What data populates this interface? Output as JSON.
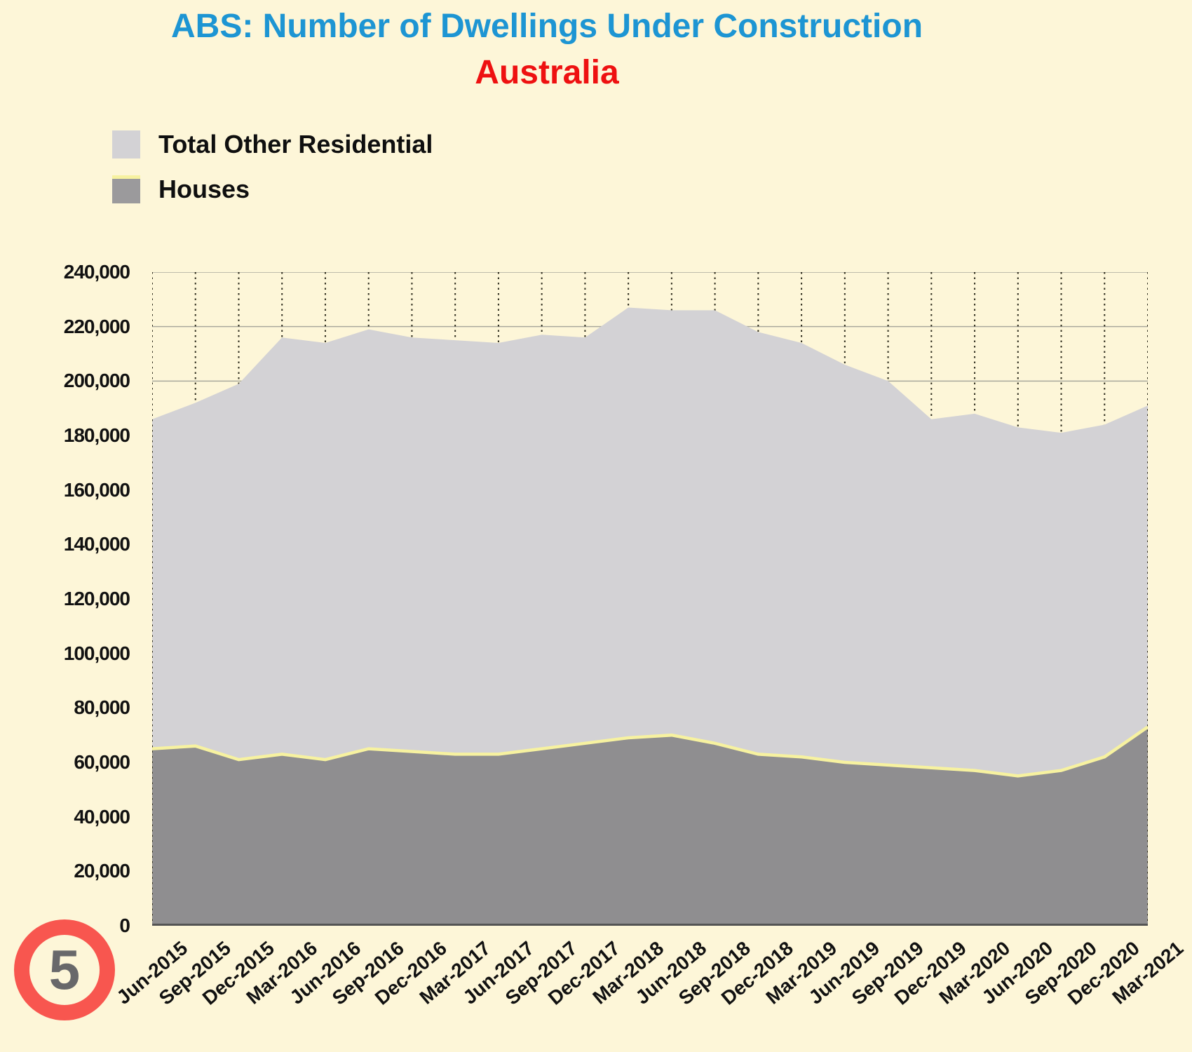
{
  "title": {
    "line1": "ABS: Number of Dwellings Under Construction",
    "line2": "Australia"
  },
  "legend": {
    "items": [
      {
        "label": "Total Other Residential",
        "swatch_color": "#d3d2d5"
      },
      {
        "label": "Houses",
        "swatch_color": "#9b9a9c",
        "swatch_top_line_color": "#f7f2a0"
      }
    ]
  },
  "badge": {
    "number": "5"
  },
  "colors": {
    "background": "#fdf6d8",
    "title_blue": "#1d95d3",
    "subtitle_red": "#ee1111",
    "area_houses": "#8f8e90",
    "area_other_residential": "#d3d2d5",
    "houses_top_line": "#f7f2a0",
    "grid_horizontal": "#a9a89c",
    "grid_vertical_dotted": "#2f2d1e",
    "axis_bottom_line": "#545454",
    "axis_text": "#111111",
    "badge_ring": "#f8564f",
    "badge_number": "#68686a"
  },
  "chart_data": {
    "type": "area",
    "stacked": true,
    "title": "ABS: Number of Dwellings Under Construction",
    "subtitle": "Australia",
    "legend_position": "top-left",
    "grid": {
      "horizontal": "solid",
      "vertical": "dotted"
    },
    "ylim": [
      0,
      240000
    ],
    "y_tick_step": 20000,
    "y_tick_labels_top_down": [
      "240,000",
      "220,000",
      "200,000",
      "180,000",
      "160,000",
      "140,000",
      "120,000",
      "100,000",
      "80,000",
      "60,000",
      "40,000",
      "20,000",
      "0"
    ],
    "categories": [
      "Jun-2015",
      "Sep-2015",
      "Dec-2015",
      "Mar-2016",
      "Jun-2016",
      "Sep-2016",
      "Dec-2016",
      "Mar-2017",
      "Jun-2017",
      "Sep-2017",
      "Dec-2017",
      "Mar-2018",
      "Jun-2018",
      "Sep-2018",
      "Dec-2018",
      "Mar-2019",
      "Jun-2019",
      "Sep-2019",
      "Dec-2019",
      "Mar-2020",
      "Jun-2020",
      "Sep-2020",
      "Dec-2020",
      "Mar-2021"
    ],
    "series": [
      {
        "name": "Houses",
        "values": [
          65000,
          66000,
          61000,
          63000,
          61000,
          65000,
          64000,
          63000,
          63000,
          65000,
          67000,
          69000,
          70000,
          67000,
          63000,
          62000,
          60000,
          59000,
          58000,
          57000,
          55000,
          57000,
          62000,
          73000
        ]
      },
      {
        "name": "Total Other Residential",
        "values": [
          121000,
          126000,
          138000,
          153000,
          153000,
          154000,
          152000,
          152000,
          151000,
          152000,
          149000,
          158000,
          156000,
          159000,
          155000,
          152000,
          146000,
          141000,
          128000,
          131000,
          128000,
          124000,
          122000,
          118000
        ]
      }
    ],
    "stack_totals": [
      186000,
      192000,
      199000,
      216000,
      214000,
      219000,
      216000,
      215000,
      214000,
      217000,
      216000,
      227000,
      226000,
      226000,
      218000,
      214000,
      206000,
      200000,
      186000,
      188000,
      183000,
      181000,
      184000,
      191000
    ]
  }
}
